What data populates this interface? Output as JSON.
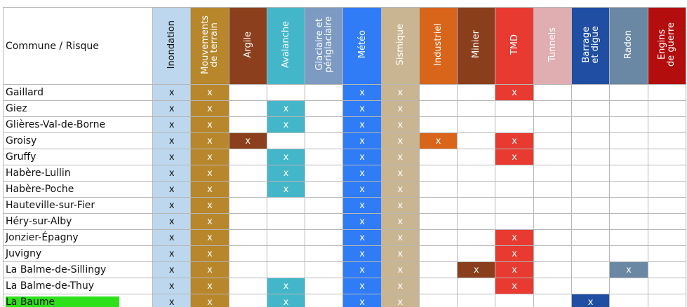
{
  "header_label": "Commune / Risque",
  "risks": [
    {
      "key": "inondation",
      "label": "Inondation",
      "head_bg": "#bdd7ee",
      "head_fg": "#111111",
      "cell_bg": "#bdd7ee",
      "cell_fg": "#111111"
    },
    {
      "key": "mouvements",
      "label": "Mouvements\nde terrain",
      "head_bg": "#b8862b",
      "head_fg": "#ffffff",
      "cell_bg": "#b8862b",
      "cell_fg": "#ffffff"
    },
    {
      "key": "argile",
      "label": "Argile",
      "head_bg": "#8b3f1c",
      "head_fg": "#ffffff",
      "cell_bg": "#8b3f1c",
      "cell_fg": "#ffffff"
    },
    {
      "key": "avalanche",
      "label": "Avalanche",
      "head_bg": "#44b6c9",
      "head_fg": "#ffffff",
      "cell_bg": "#44b6c9",
      "cell_fg": "#ffffff"
    },
    {
      "key": "glaciaire",
      "label": "Glaciaire et\npériglaciaire",
      "head_bg": "#7c9ac2",
      "head_fg": "#ffffff",
      "cell_bg": "#7c9ac2",
      "cell_fg": "#ffffff"
    },
    {
      "key": "meteo",
      "label": "Météo",
      "head_bg": "#2f7cf6",
      "head_fg": "#ffffff",
      "cell_bg": "#2f7cf6",
      "cell_fg": "#ffffff"
    },
    {
      "key": "sismique",
      "label": "Sismique",
      "head_bg": "#c9b591",
      "head_fg": "#ffffff",
      "cell_bg": "#c9b591",
      "cell_fg": "#ffffff"
    },
    {
      "key": "industriel",
      "label": "Industriel",
      "head_bg": "#d9651a",
      "head_fg": "#ffffff",
      "cell_bg": "#d9651a",
      "cell_fg": "#ffffff"
    },
    {
      "key": "minier",
      "label": "Minier",
      "head_bg": "#8b3e1b",
      "head_fg": "#ffffff",
      "cell_bg": "#8b3e1b",
      "cell_fg": "#ffffff"
    },
    {
      "key": "tmd",
      "label": "TMD",
      "head_bg": "#e83a30",
      "head_fg": "#ffffff",
      "cell_bg": "#e83a30",
      "cell_fg": "#ffffff"
    },
    {
      "key": "tunnels",
      "label": "Tunnels",
      "head_bg": "#e0aeb0",
      "head_fg": "#ffffff",
      "cell_bg": "#e0aeb0",
      "cell_fg": "#ffffff"
    },
    {
      "key": "barrage",
      "label": "Barrage\net digue",
      "head_bg": "#1f4ea3",
      "head_fg": "#ffffff",
      "cell_bg": "#1f4ea3",
      "cell_fg": "#ffffff"
    },
    {
      "key": "radon",
      "label": "Radon",
      "head_bg": "#6a87a3",
      "head_fg": "#ffffff",
      "cell_bg": "#6a87a3",
      "cell_fg": "#ffffff"
    },
    {
      "key": "engins",
      "label": "Engins\nde guerre",
      "head_bg": "#b30d0d",
      "head_fg": "#ffffff",
      "cell_bg": "#b30d0d",
      "cell_fg": "#ffffff"
    }
  ],
  "mark_symbol": "x",
  "highlight_color": "#2ee01a",
  "rows": [
    {
      "name": "Gaillard",
      "marks": [
        "inondation",
        "mouvements",
        "meteo",
        "sismique",
        "tmd"
      ]
    },
    {
      "name": "Giez",
      "marks": [
        "inondation",
        "mouvements",
        "avalanche",
        "meteo",
        "sismique"
      ]
    },
    {
      "name": "Glières-Val-de-Borne",
      "marks": [
        "inondation",
        "mouvements",
        "avalanche",
        "meteo",
        "sismique"
      ]
    },
    {
      "name": "Groisy",
      "marks": [
        "inondation",
        "mouvements",
        "argile",
        "meteo",
        "sismique",
        "industriel",
        "tmd"
      ]
    },
    {
      "name": "Gruffy",
      "marks": [
        "inondation",
        "mouvements",
        "avalanche",
        "meteo",
        "sismique",
        "tmd"
      ]
    },
    {
      "name": "Habère-Lullin",
      "marks": [
        "inondation",
        "mouvements",
        "avalanche",
        "meteo",
        "sismique"
      ]
    },
    {
      "name": "Habère-Poche",
      "marks": [
        "inondation",
        "mouvements",
        "avalanche",
        "meteo",
        "sismique"
      ]
    },
    {
      "name": "Hauteville-sur-Fier",
      "marks": [
        "inondation",
        "mouvements",
        "meteo",
        "sismique"
      ]
    },
    {
      "name": "Héry-sur-Alby",
      "marks": [
        "inondation",
        "mouvements",
        "meteo",
        "sismique"
      ]
    },
    {
      "name": "Jonzier-Épagny",
      "marks": [
        "inondation",
        "mouvements",
        "meteo",
        "sismique",
        "tmd"
      ]
    },
    {
      "name": "Juvigny",
      "marks": [
        "inondation",
        "mouvements",
        "meteo",
        "sismique",
        "tmd"
      ]
    },
    {
      "name": "La Balme-de-Sillingy",
      "marks": [
        "inondation",
        "mouvements",
        "meteo",
        "sismique",
        "minier",
        "tmd",
        "radon"
      ]
    },
    {
      "name": "La Balme-de-Thuy",
      "marks": [
        "inondation",
        "mouvements",
        "avalanche",
        "meteo",
        "sismique",
        "tmd"
      ]
    },
    {
      "name": "La Baume",
      "highlight": true,
      "marks": [
        "inondation",
        "mouvements",
        "avalanche",
        "meteo",
        "sismique",
        "barrage"
      ]
    }
  ]
}
